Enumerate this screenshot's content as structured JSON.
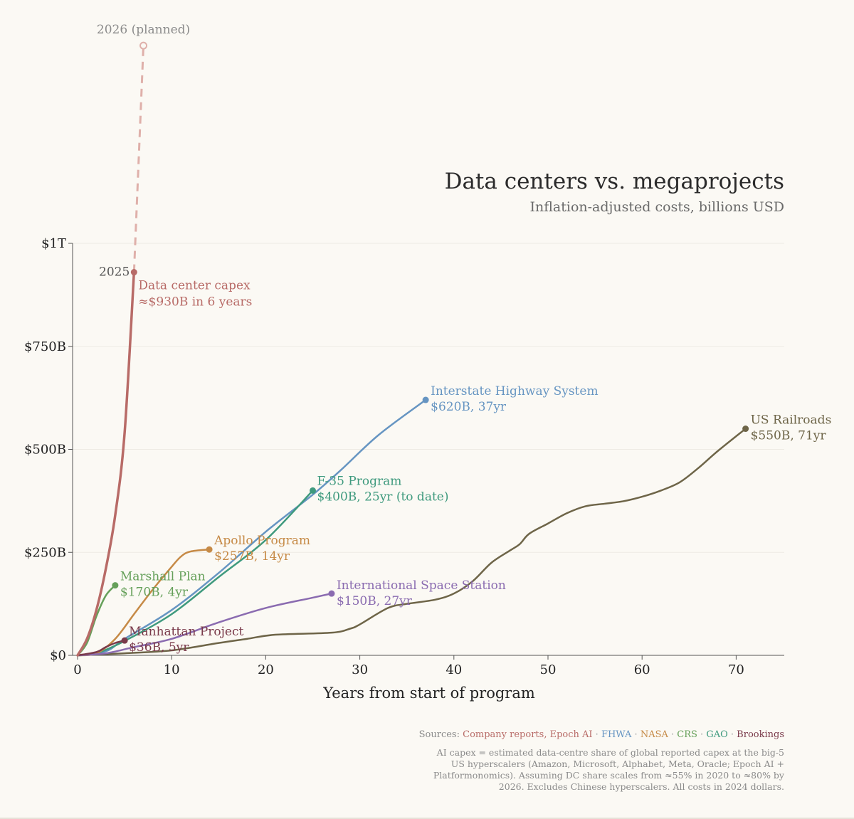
{
  "chart_data": {
    "type": "line",
    "title": "Data centers vs. megaprojects",
    "subtitle": "Inflation-adjusted costs, billions USD",
    "xlabel": "Years from start of program",
    "ylabel": "",
    "xlim": [
      0,
      75
    ],
    "ylim": [
      0,
      1000
    ],
    "xticks": [
      0,
      10,
      20,
      30,
      40,
      50,
      60,
      70
    ],
    "xtick_labels": [
      "0",
      "10",
      "20",
      "30",
      "40",
      "50",
      "60",
      "70"
    ],
    "yticks": [
      0,
      250,
      500,
      750,
      1000
    ],
    "ytick_labels": [
      "$0",
      "$250B",
      "$500B",
      "$750B",
      "$1T"
    ],
    "grid": "horizontal",
    "series": [
      {
        "name": "Data center capex",
        "color": "#b86b67",
        "points": [
          [
            0,
            0
          ],
          [
            1,
            40
          ],
          [
            2,
            110
          ],
          [
            3,
            210
          ],
          [
            4,
            340
          ],
          [
            5,
            540
          ],
          [
            6,
            930
          ]
        ],
        "label_lines": [
          "Data center capex",
          "≈$930B in 6 years"
        ],
        "end_tag": "2025"
      },
      {
        "name": "Interstate Highway System",
        "color": "#6695c2",
        "points": [
          [
            0,
            0
          ],
          [
            3,
            10
          ],
          [
            5,
            40
          ],
          [
            10,
            110
          ],
          [
            15,
            200
          ],
          [
            20,
            300
          ],
          [
            25,
            390
          ],
          [
            28,
            450
          ],
          [
            32,
            535
          ],
          [
            37,
            620
          ]
        ],
        "label_lines": [
          "Interstate Highway System",
          "$620B, 37yr"
        ]
      },
      {
        "name": "US Railroads",
        "color": "#6e6548",
        "points": [
          [
            0,
            0
          ],
          [
            5,
            5
          ],
          [
            10,
            12
          ],
          [
            15,
            30
          ],
          [
            18,
            40
          ],
          [
            21,
            50
          ],
          [
            27,
            55
          ],
          [
            29,
            65
          ],
          [
            30,
            75
          ],
          [
            33,
            115
          ],
          [
            35,
            125
          ],
          [
            38,
            135
          ],
          [
            40,
            150
          ],
          [
            42,
            180
          ],
          [
            44,
            225
          ],
          [
            46,
            255
          ],
          [
            47,
            270
          ],
          [
            48,
            295
          ],
          [
            50,
            320
          ],
          [
            52,
            345
          ],
          [
            54,
            362
          ],
          [
            56,
            368
          ],
          [
            58,
            374
          ],
          [
            60,
            385
          ],
          [
            62,
            400
          ],
          [
            64,
            420
          ],
          [
            66,
            455
          ],
          [
            68,
            495
          ],
          [
            71,
            550
          ]
        ],
        "label_lines": [
          "US Railroads",
          "$550B, 71yr"
        ]
      },
      {
        "name": "F-35 Program",
        "color": "#3f9a7e",
        "points": [
          [
            0,
            0
          ],
          [
            2,
            5
          ],
          [
            5,
            35
          ],
          [
            10,
            100
          ],
          [
            15,
            190
          ],
          [
            20,
            280
          ],
          [
            25,
            400
          ]
        ],
        "label_lines": [
          "F-35 Program",
          "$400B, 25yr (to date)"
        ]
      },
      {
        "name": "Apollo Program",
        "color": "#c68a46",
        "points": [
          [
            0,
            0
          ],
          [
            2,
            5
          ],
          [
            4,
            40
          ],
          [
            6,
            100
          ],
          [
            8,
            160
          ],
          [
            10,
            215
          ],
          [
            11,
            240
          ],
          [
            12,
            252
          ],
          [
            14,
            257
          ]
        ],
        "label_lines": [
          "Apollo Program",
          "$257B, 14yr"
        ]
      },
      {
        "name": "International Space Station",
        "color": "#8a6bb0",
        "points": [
          [
            0,
            0
          ],
          [
            3,
            5
          ],
          [
            6,
            20
          ],
          [
            10,
            40
          ],
          [
            15,
            80
          ],
          [
            20,
            115
          ],
          [
            25,
            140
          ],
          [
            27,
            150
          ]
        ],
        "label_lines": [
          "International Space Station",
          "$150B, 27yr"
        ]
      },
      {
        "name": "Marshall Plan",
        "color": "#66a05a",
        "points": [
          [
            0,
            0
          ],
          [
            1,
            30
          ],
          [
            2,
            95
          ],
          [
            3,
            145
          ],
          [
            4,
            170
          ]
        ],
        "label_lines": [
          "Marshall Plan",
          "$170B, 4yr"
        ]
      },
      {
        "name": "Manhattan Project",
        "color": "#7a3a4a",
        "points": [
          [
            0,
            0
          ],
          [
            2,
            8
          ],
          [
            3,
            20
          ],
          [
            4,
            30
          ],
          [
            5,
            36
          ]
        ],
        "label_lines": [
          "Manhattan Project",
          "$36B, 5yr"
        ]
      }
    ],
    "planned": {
      "series": "Data center capex",
      "from": [
        6,
        930
      ],
      "to": [
        7,
        1480
      ],
      "label": "2026 (planned)"
    },
    "sources_label": "Sources:",
    "sources": [
      {
        "text": "Company reports, Epoch AI",
        "color": "#b86b67"
      },
      {
        "text": "FHWA",
        "color": "#6695c2"
      },
      {
        "text": "NASA",
        "color": "#c68a46"
      },
      {
        "text": "CRS",
        "color": "#66a05a"
      },
      {
        "text": "GAO",
        "color": "#3f9a7e"
      },
      {
        "text": "Brookings",
        "color": "#7a3a4a"
      }
    ],
    "source_separator": "·",
    "footnote_lines": [
      "AI capex = estimated data-centre share of global reported capex at the big-5",
      "US hyperscalers (Amazon, Microsoft, Alphabet, Meta, Oracle; Epoch AI +",
      "Platformonomics). Assuming DC share scales from ≈55% in 2020 to ≈80% by",
      "2026. Excludes Chinese hyperscalers. All costs in 2024 dollars."
    ]
  }
}
